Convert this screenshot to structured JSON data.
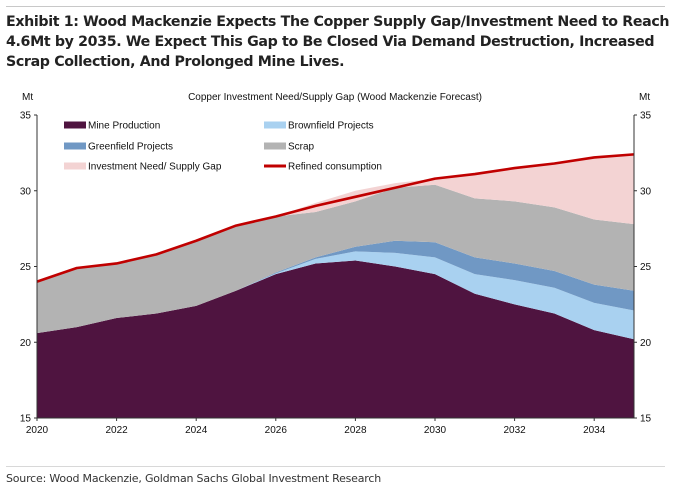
{
  "exhibit_title": "Exhibit 1: Wood Mackenzie Expects The Copper Supply Gap/Investment Need to Reach 4.6Mt by 2035. We Expect This Gap to Be Closed Via Demand Destruction, Increased Scrap Collection, And Prolonged Mine Lives.",
  "source": "Source: Wood Mackenzie, Goldman Sachs Global Investment Research",
  "chart_data": {
    "type": "area",
    "stacked": true,
    "title": "Copper Investment Need/Supply Gap (Wood Mackenzie Forecast)",
    "ylabel_left": "Mt",
    "ylabel_right": "Mt",
    "xlabel": "",
    "x": [
      2020,
      2021,
      2022,
      2023,
      2024,
      2025,
      2026,
      2027,
      2028,
      2029,
      2030,
      2031,
      2032,
      2033,
      2034,
      2035
    ],
    "xlim": [
      2020,
      2035
    ],
    "x_ticks": [
      "2020",
      "2022",
      "2024",
      "2026",
      "2028",
      "2030",
      "2032",
      "2034"
    ],
    "ylim": [
      15,
      35
    ],
    "y_ticks": [
      "15",
      "20",
      "25",
      "30",
      "35"
    ],
    "grid": false,
    "legend_position": "top-left",
    "series": [
      {
        "name": "Mine Production",
        "kind": "area",
        "color": "#4F1440",
        "values": [
          20.6,
          21.0,
          21.6,
          21.9,
          22.4,
          23.4,
          24.5,
          25.2,
          25.4,
          25.0,
          24.5,
          23.2,
          22.5,
          21.9,
          20.8,
          20.2
        ]
      },
      {
        "name": "Brownfield Projects",
        "kind": "area",
        "color": "#A9D1F0",
        "values": [
          0,
          0,
          0,
          0,
          0,
          0,
          0.05,
          0.3,
          0.6,
          0.9,
          1.1,
          1.3,
          1.6,
          1.7,
          1.8,
          1.9
        ]
      },
      {
        "name": "Greenfield Projects",
        "kind": "area",
        "color": "#7098C4",
        "values": [
          0,
          0,
          0,
          0,
          0,
          0,
          0.05,
          0.1,
          0.3,
          0.8,
          1.0,
          1.1,
          1.1,
          1.1,
          1.2,
          1.3
        ]
      },
      {
        "name": "Scrap",
        "kind": "area",
        "color": "#B3B3B3",
        "values": [
          3.4,
          3.9,
          3.6,
          3.9,
          4.3,
          4.3,
          3.7,
          3.0,
          3.0,
          3.5,
          3.8,
          3.9,
          4.1,
          4.2,
          4.3,
          4.4
        ]
      },
      {
        "name": "Investment Need/ Supply Gap",
        "kind": "area",
        "color": "#F3D3D3",
        "values": [
          0,
          0,
          0,
          0,
          0,
          0,
          0,
          0.6,
          0.7,
          0.3,
          0.4,
          1.6,
          2.2,
          2.9,
          4.1,
          4.6
        ]
      },
      {
        "name": "Refined consumption",
        "kind": "line",
        "color": "#C00000",
        "values": [
          24.0,
          24.9,
          25.2,
          25.8,
          26.7,
          27.7,
          28.3,
          29.0,
          29.6,
          30.2,
          30.8,
          31.1,
          31.5,
          31.8,
          32.2,
          32.4
        ]
      }
    ],
    "legend": [
      {
        "label": "Mine Production",
        "color": "#4F1440",
        "kind": "area"
      },
      {
        "label": "Brownfield Projects",
        "color": "#A9D1F0",
        "kind": "area"
      },
      {
        "label": "Greenfield Projects",
        "color": "#7098C4",
        "kind": "area"
      },
      {
        "label": "Scrap",
        "color": "#B3B3B3",
        "kind": "area"
      },
      {
        "label": "Investment Need/ Supply Gap",
        "color": "#F3D3D3",
        "kind": "area"
      },
      {
        "label": "Refined consumption",
        "color": "#C00000",
        "kind": "line"
      }
    ]
  }
}
